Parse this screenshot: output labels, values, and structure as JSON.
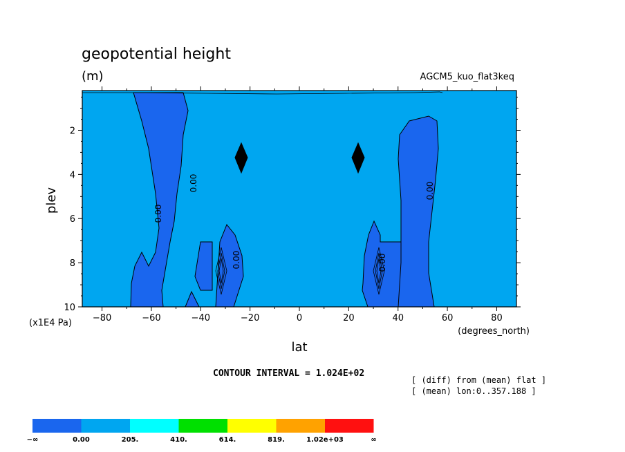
{
  "chart_data": {
    "type": "contour",
    "title": "geopotential height",
    "units": "(m)",
    "run_label": "AGCM5_kuo_flat3keq",
    "xlabel": "lat",
    "xunits": "(degrees_north)",
    "ylabel": "plev",
    "yunits": "(x1E4 Pa)",
    "x_ticks": [
      -80,
      -60,
      -40,
      -20,
      0,
      20,
      40,
      60,
      80
    ],
    "x_tick_labels": [
      "−80",
      "−60",
      "−40",
      "−20",
      "0",
      "20",
      "40",
      "60",
      "80"
    ],
    "y_ticks": [
      2,
      4,
      6,
      8,
      10
    ],
    "xlim": [
      -88,
      88
    ],
    "ylim": [
      10,
      0.2
    ],
    "contour_interval": "CONTOUR INTERVAL = 1.024E+02",
    "annotations": [
      "[ (diff) from (mean) flat ]",
      "[ (mean) lon:0..357.188 ]"
    ],
    "contour_labels": [
      "0.00",
      "0.00",
      "0.00",
      "0.00",
      "0.00"
    ],
    "colorbar": {
      "labels": [
        "−∞",
        "0.00",
        "205.",
        "410.",
        "614.",
        "819.",
        "1.02e+03",
        "∞"
      ],
      "colors": [
        "#1a66ee",
        "#00a6f0",
        "#00ffff",
        "#00e000",
        "#ffff00",
        "#ffa200",
        "#ff1010"
      ]
    },
    "fill_colors": {
      "negative": "#1a66ee",
      "low": "#00a6f0",
      "peak": "#000000"
    }
  }
}
